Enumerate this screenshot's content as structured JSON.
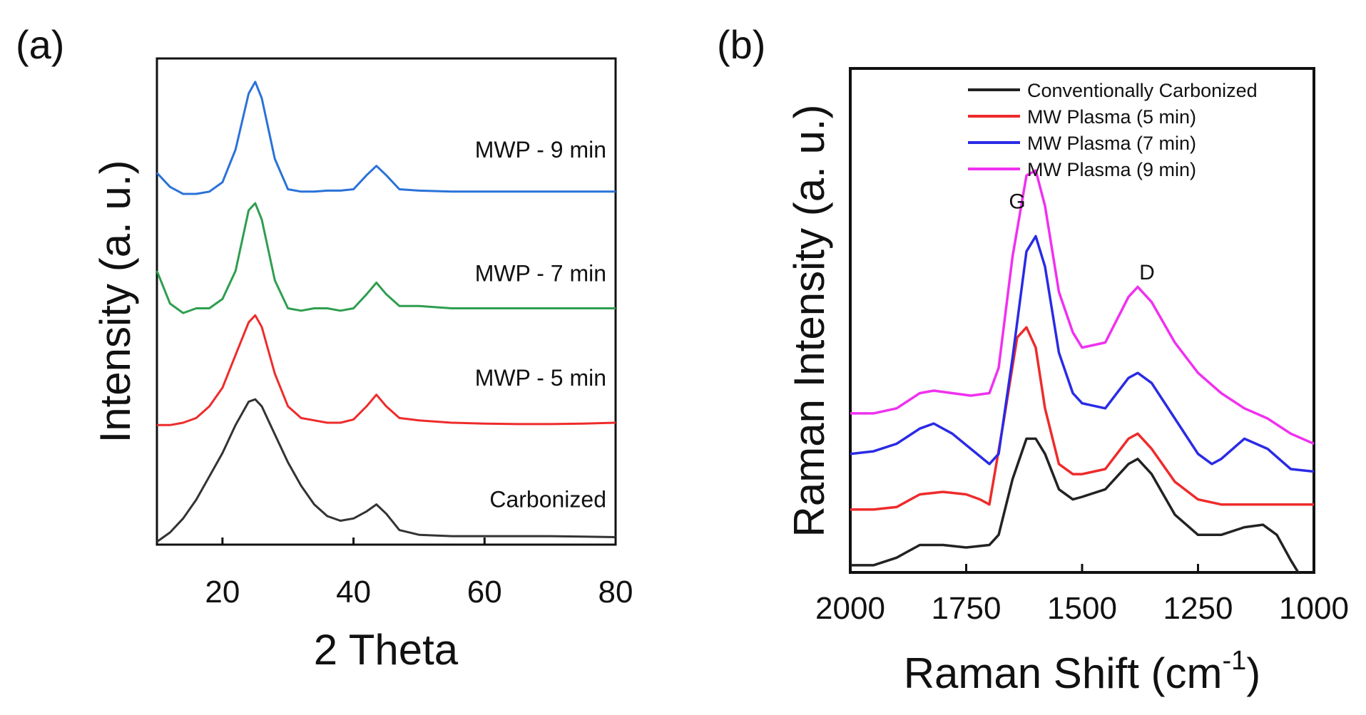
{
  "chart_data": [
    {
      "type": "line",
      "panel_label": "(a)",
      "xlabel": "2 Theta",
      "ylabel": "Intensity (a. u.)",
      "xlim": [
        10,
        80
      ],
      "ylim": [
        0,
        1
      ],
      "y_ticks_shown": false,
      "x_ticks": [
        20,
        40,
        60,
        80
      ],
      "x_tick_labels": [
        "20",
        "40",
        "60",
        "80"
      ],
      "series": [
        {
          "name": "Carbonized",
          "color": "#333333",
          "x": [
            10,
            12,
            14,
            16,
            18,
            20,
            22,
            24,
            25,
            26,
            28,
            30,
            32,
            34,
            36,
            38,
            40,
            42,
            43.5,
            45,
            47,
            50,
            55,
            60,
            65,
            70,
            75,
            80
          ],
          "y": [
            0.0,
            0.02,
            0.05,
            0.09,
            0.14,
            0.19,
            0.25,
            0.3,
            0.305,
            0.29,
            0.23,
            0.17,
            0.12,
            0.08,
            0.055,
            0.045,
            0.05,
            0.065,
            0.08,
            0.06,
            0.025,
            0.015,
            0.012,
            0.012,
            0.012,
            0.012,
            0.011,
            0.01
          ],
          "label_text": "Carbonized"
        },
        {
          "name": "MWP - 5 min",
          "color": "#ee2b2b",
          "x": [
            10,
            12,
            14,
            16,
            18,
            20,
            22,
            24,
            25,
            26,
            28,
            30,
            32,
            34,
            36,
            38,
            40,
            42,
            43.5,
            45,
            47,
            50,
            55,
            60,
            65,
            70,
            75,
            80
          ],
          "y": [
            0.25,
            0.25,
            0.255,
            0.265,
            0.29,
            0.33,
            0.4,
            0.47,
            0.485,
            0.46,
            0.36,
            0.29,
            0.265,
            0.26,
            0.255,
            0.255,
            0.262,
            0.29,
            0.315,
            0.29,
            0.265,
            0.26,
            0.255,
            0.253,
            0.252,
            0.252,
            0.253,
            0.255
          ],
          "label_text": "MWP - 5 min"
        },
        {
          "name": "MWP - 7 min",
          "color": "#2e9e4f",
          "x": [
            10,
            12,
            14,
            16,
            18,
            20,
            22,
            24,
            25,
            26,
            28,
            30,
            32,
            34,
            36,
            38,
            40,
            42,
            43.5,
            45,
            47,
            50,
            55,
            60,
            65,
            70,
            75,
            80
          ],
          "y": [
            0.58,
            0.51,
            0.49,
            0.5,
            0.5,
            0.52,
            0.58,
            0.71,
            0.725,
            0.69,
            0.56,
            0.5,
            0.495,
            0.5,
            0.5,
            0.495,
            0.5,
            0.53,
            0.555,
            0.53,
            0.505,
            0.505,
            0.5,
            0.5,
            0.5,
            0.5,
            0.5,
            0.5
          ],
          "label_text": "MWP - 7 min"
        },
        {
          "name": "MWP - 9 min",
          "color": "#2a72d8",
          "x": [
            10,
            12,
            14,
            16,
            18,
            20,
            22,
            24,
            25,
            26,
            28,
            30,
            32,
            34,
            36,
            38,
            40,
            42,
            43.5,
            45,
            47,
            50,
            55,
            60,
            65,
            70,
            75,
            80
          ],
          "y": [
            0.79,
            0.76,
            0.745,
            0.745,
            0.75,
            0.77,
            0.84,
            0.96,
            0.985,
            0.95,
            0.82,
            0.755,
            0.75,
            0.75,
            0.752,
            0.752,
            0.755,
            0.785,
            0.805,
            0.785,
            0.755,
            0.752,
            0.75,
            0.75,
            0.75,
            0.75,
            0.75,
            0.75
          ],
          "label_text": "MWP - 9 min"
        }
      ]
    },
    {
      "type": "line",
      "panel_label": "(b)",
      "xlabel_main": "Raman Shift (cm",
      "xlabel_sup": "-1",
      "xlabel_close": ")",
      "ylabel": "Raman Intensity (a. u.)",
      "xlim": [
        2000,
        1000
      ],
      "ylim": [
        0,
        1
      ],
      "y_ticks_shown": false,
      "x_ticks": [
        2000,
        1750,
        1500,
        1250,
        1000
      ],
      "x_tick_labels": [
        "2000",
        "1750",
        "1500",
        "1250",
        "1000"
      ],
      "legend_position": "top-right",
      "annotations": [
        {
          "text": "G",
          "x": 1640,
          "y": 0.715
        },
        {
          "text": "D",
          "x": 1360,
          "y": 0.575
        }
      ],
      "series": [
        {
          "name": "Conventionally Carbonized",
          "color": "#222222",
          "x": [
            2000,
            1950,
            1900,
            1880,
            1850,
            1800,
            1750,
            1700,
            1680,
            1650,
            1620,
            1600,
            1580,
            1550,
            1520,
            1500,
            1450,
            1400,
            1380,
            1350,
            1300,
            1250,
            1200,
            1150,
            1110,
            1080,
            1050,
            1030
          ],
          "y": [
            0.01,
            0.01,
            0.025,
            0.035,
            0.05,
            0.05,
            0.045,
            0.05,
            0.07,
            0.18,
            0.26,
            0.26,
            0.23,
            0.16,
            0.14,
            0.145,
            0.16,
            0.21,
            0.22,
            0.19,
            0.11,
            0.07,
            0.07,
            0.085,
            0.09,
            0.07,
            0.02,
            -0.01
          ]
        },
        {
          "name": "MW Plasma (5 min)",
          "color": "#ee2b2b",
          "x": [
            2000,
            1950,
            1900,
            1850,
            1800,
            1750,
            1720,
            1700,
            1670,
            1640,
            1620,
            1600,
            1580,
            1550,
            1520,
            1500,
            1450,
            1400,
            1380,
            1350,
            1300,
            1250,
            1200,
            1150,
            1100,
            1050,
            1000
          ],
          "y": [
            0.12,
            0.12,
            0.125,
            0.15,
            0.155,
            0.15,
            0.14,
            0.13,
            0.29,
            0.46,
            0.48,
            0.44,
            0.32,
            0.21,
            0.19,
            0.19,
            0.2,
            0.26,
            0.27,
            0.24,
            0.175,
            0.14,
            0.13,
            0.13,
            0.13,
            0.13,
            0.13
          ]
        },
        {
          "name": "MW Plasma (7 min)",
          "color": "#2a2ae6",
          "x": [
            2000,
            1950,
            1900,
            1850,
            1820,
            1780,
            1740,
            1700,
            1680,
            1650,
            1620,
            1600,
            1580,
            1550,
            1520,
            1500,
            1450,
            1400,
            1380,
            1350,
            1300,
            1250,
            1220,
            1200,
            1150,
            1100,
            1050,
            1000
          ],
          "y": [
            0.23,
            0.235,
            0.25,
            0.28,
            0.29,
            0.27,
            0.24,
            0.21,
            0.23,
            0.42,
            0.63,
            0.66,
            0.6,
            0.43,
            0.35,
            0.33,
            0.32,
            0.38,
            0.39,
            0.37,
            0.3,
            0.23,
            0.21,
            0.22,
            0.26,
            0.24,
            0.2,
            0.195
          ]
        },
        {
          "name": "MW Plasma (9 min)",
          "color": "#f030f0",
          "x": [
            2000,
            1950,
            1900,
            1850,
            1820,
            1780,
            1740,
            1700,
            1680,
            1650,
            1620,
            1600,
            1580,
            1550,
            1520,
            1500,
            1450,
            1400,
            1380,
            1350,
            1300,
            1250,
            1200,
            1150,
            1100,
            1050,
            1000
          ],
          "y": [
            0.31,
            0.31,
            0.32,
            0.35,
            0.355,
            0.35,
            0.345,
            0.35,
            0.4,
            0.62,
            0.78,
            0.79,
            0.72,
            0.55,
            0.47,
            0.44,
            0.45,
            0.54,
            0.56,
            0.53,
            0.45,
            0.39,
            0.35,
            0.32,
            0.3,
            0.27,
            0.25
          ]
        }
      ]
    }
  ]
}
